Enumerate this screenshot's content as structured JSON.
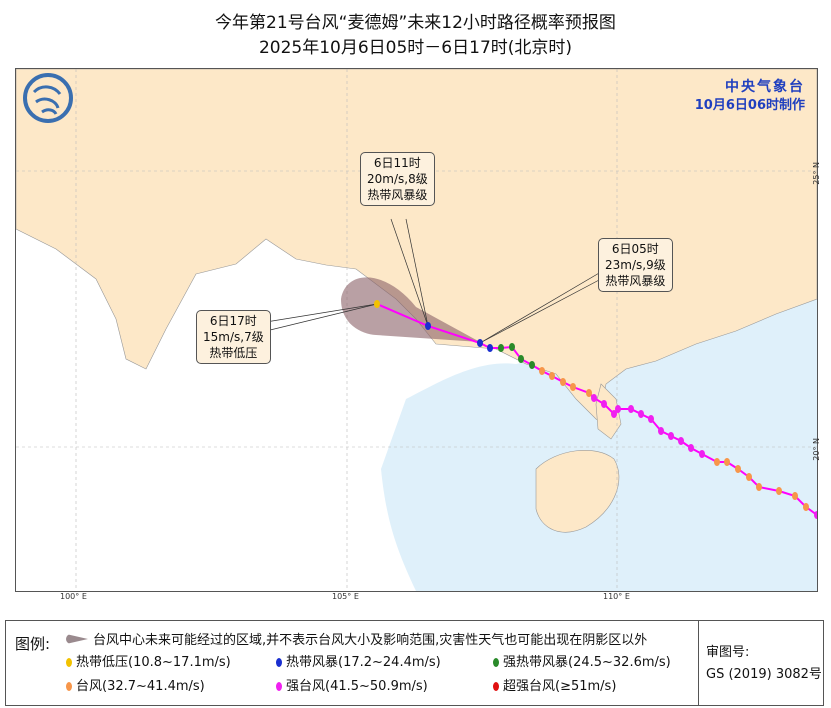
{
  "title": {
    "line1": "今年第21号台风“麦德姆”未来12小时路径概率预报图",
    "line2": "2025年10月6日05时－6日17时(北京时)"
  },
  "agency": {
    "name": "中央气象台",
    "issued": "10月6日06时制作"
  },
  "axes": {
    "lon_ticks": [
      "100° E",
      "105° E",
      "110° E"
    ],
    "lat_ticks": [
      "25° N",
      "20° N"
    ]
  },
  "callouts": [
    {
      "time": "6日11时",
      "wind": "20m/s,8级",
      "level": "热带风暴级"
    },
    {
      "time": "6日05时",
      "wind": "23m/s,9级",
      "level": "热带风暴级"
    },
    {
      "time": "6日17时",
      "wind": "15m/s,7级",
      "level": "热带低压"
    }
  ],
  "legend": {
    "label": "图例:",
    "cone": "台风中心未来可能经过的区域,并不表示台风大小及影响范围,灾害性天气也可能出现在阴影区以外",
    "items": [
      {
        "label": "热带低压(10.8~17.1m/s)",
        "color": "#f2c200"
      },
      {
        "label": "热带风暴(17.2~24.4m/s)",
        "color": "#1a2fd0"
      },
      {
        "label": "强热带风暴(24.5~32.6m/s)",
        "color": "#2a8a2a"
      },
      {
        "label": "台风(32.7~41.4m/s)",
        "color": "#f7964a"
      },
      {
        "label": "强台风(41.5~50.9m/s)",
        "color": "#f020f0"
      },
      {
        "label": "超强台风(≥51m/s)",
        "color": "#e01010"
      }
    ],
    "approval_label": "审图号:",
    "approval_no": "GS (2019) 3082号"
  },
  "colors": {
    "land": "#fde8c8",
    "sea": "#dff0fa",
    "foreign": "#ffffff",
    "track": "#ff00ff",
    "cone": "#8a6068"
  }
}
